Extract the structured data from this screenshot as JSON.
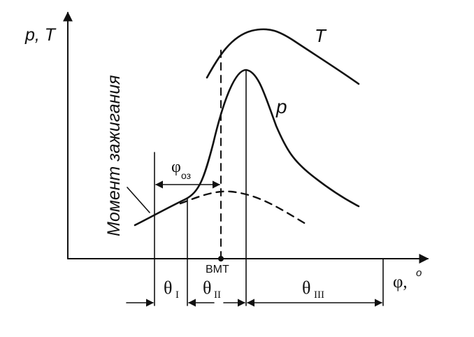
{
  "labels": {
    "y_axis": "p, T",
    "x_axis_phi": "φ,",
    "x_axis_deg": "o",
    "curve_T": "T",
    "curve_p": "p",
    "ignition": "Момент зажигания",
    "phi_oz_main": "φ",
    "phi_oz_sub": "оз",
    "tdc": "ВМТ",
    "theta": "θ",
    "theta_1_sub": "I",
    "theta_2_sub": "II",
    "theta_3_sub": "III"
  }
}
